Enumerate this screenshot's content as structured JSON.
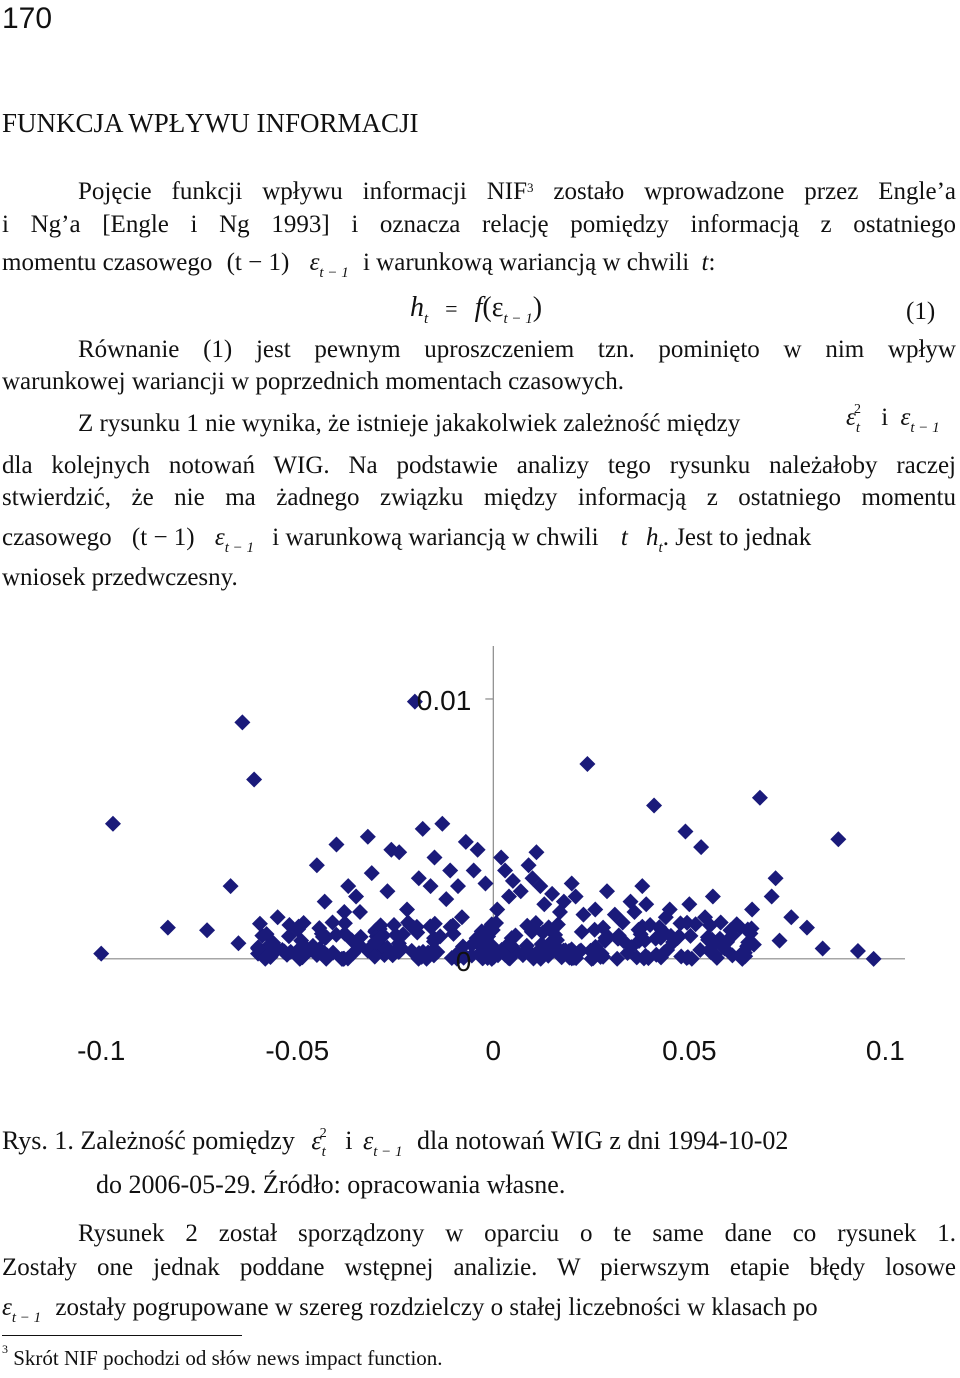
{
  "page_number": "170",
  "section_title": "FUNKCJA WPŁYWU INFORMACJI",
  "para1": {
    "line1a": "Pojęcie funkcji wpływu informacji NIF",
    "line1_footnote_mark": "3",
    "line1b": " zostało wprowadzone przez Engle’a",
    "line2": "i Ng’a [Engle i Ng 1993] i oznacza relację pomiędzy informacją z ostatniego",
    "line3_text": "momentu czasowego",
    "line3_math1": "(t − 1)",
    "line3_text2": "i warunkową wariancją w chwili",
    "line3_math2": "t",
    "line3_end": ":"
  },
  "equation": {
    "lhs": "h",
    "lhs_sub": "t",
    "eq": "=",
    "func": "f",
    "arg_open": "(ε",
    "arg_sub": "t − 1",
    "arg_close": ")",
    "number": "(1)"
  },
  "para2": {
    "line1": "Równanie (1) jest pewnym uproszczeniem tzn. pominięto w nim wpływ",
    "line2": "warunkowej wariancji w poprzednich momentach czasowych."
  },
  "para3": {
    "line1": "Z rysunku 1 nie wynika, że istnieje jakakolwiek zależność między",
    "line1_math_sup": "2",
    "line1_conj": "i",
    "line2": "dla kolejnych notowań WIG. Na podstawie analizy tego rysunku należałoby raczej",
    "line3": "stwierdzić, że nie ma żadnego związku między informacją z ostatniego momentu",
    "line4_text": "czasowego",
    "line4_math1": "(t − 1)",
    "line4_text2": "i warunkową wariancją w chwili",
    "line4_text3": ". Jest to jednak",
    "line5": "wniosek przedwczesny."
  },
  "eps": "ε",
  "sub_t": "t",
  "sub_t1": "t − 1",
  "chart_data": {
    "type": "scatter",
    "title": "",
    "xlabel": "",
    "ylabel": "",
    "xlim": [
      -0.11,
      0.105
    ],
    "ylim": [
      -0.0022,
      0.0115
    ],
    "x_ticks": [
      "-0.1",
      "-0.05",
      "0",
      "0.05",
      "0.1"
    ],
    "x_tick_values": [
      -0.1,
      -0.05,
      0,
      0.05,
      0.1
    ],
    "y_ticks": [
      "0.01",
      "0"
    ],
    "y_tick_values": [
      0.01,
      0
    ],
    "marker": "diamond",
    "marker_color": "#1a1a7a",
    "points": [
      [
        -0.1,
        0.0002
      ],
      [
        -0.097,
        0.0052
      ],
      [
        -0.083,
        0.0012
      ],
      [
        -0.073,
        0.0011
      ],
      [
        -0.067,
        0.0028
      ],
      [
        -0.061,
        0.0069
      ],
      [
        -0.064,
        0.0091
      ],
      [
        -0.058,
        0.0004
      ],
      [
        -0.055,
        0.0016
      ],
      [
        -0.049,
        0.0007
      ],
      [
        -0.045,
        0.0036
      ],
      [
        -0.04,
        0.0044
      ],
      [
        -0.037,
        0.0028
      ],
      [
        -0.034,
        0.0018
      ],
      [
        -0.03,
        0.0011
      ],
      [
        -0.028,
        0.0009
      ],
      [
        -0.024,
        0.0041
      ],
      [
        -0.02,
        0.0099
      ],
      [
        -0.018,
        0.005
      ],
      [
        -0.013,
        0.0052
      ],
      [
        -0.011,
        0.0034
      ],
      [
        -0.007,
        0.0045
      ],
      [
        -0.004,
        0.0042
      ],
      [
        0.002,
        0.0039
      ],
      [
        0.005,
        0.003
      ],
      [
        0.009,
        0.0036
      ],
      [
        0.013,
        0.0021
      ],
      [
        0.017,
        0.0018
      ],
      [
        0.024,
        0.0075
      ],
      [
        0.028,
        0.0012
      ],
      [
        0.031,
        0.0017
      ],
      [
        0.035,
        0.0022
      ],
      [
        0.038,
        0.0028
      ],
      [
        0.041,
        0.0059
      ],
      [
        0.045,
        0.0019
      ],
      [
        0.049,
        0.0049
      ],
      [
        0.053,
        0.0043
      ],
      [
        0.058,
        0.0014
      ],
      [
        0.061,
        0.0009
      ],
      [
        0.065,
        0.0005
      ],
      [
        0.068,
        0.0062
      ],
      [
        0.072,
        0.0031
      ],
      [
        0.076,
        0.0016
      ],
      [
        0.08,
        0.0012
      ],
      [
        0.084,
        0.0004
      ],
      [
        0.088,
        0.0046
      ],
      [
        0.093,
        0.0003
      ],
      [
        0.097,
        0.0
      ],
      [
        -0.052,
        0.0013
      ],
      [
        -0.043,
        0.0022
      ],
      [
        -0.032,
        0.0047
      ],
      [
        -0.026,
        0.0042
      ],
      [
        -0.016,
        0.0028
      ],
      [
        -0.008,
        0.0016
      ],
      [
        0.004,
        0.0024
      ],
      [
        0.011,
        0.0041
      ],
      [
        0.02,
        0.0029
      ],
      [
        0.026,
        0.0019
      ],
      [
        0.033,
        0.0014
      ],
      [
        0.039,
        0.0021
      ],
      [
        0.043,
        0.0011
      ],
      [
        0.047,
        0.0008
      ],
      [
        0.056,
        0.0024
      ],
      [
        0.063,
        0.0012
      ],
      [
        0.071,
        0.0024
      ],
      [
        -0.065,
        0.0006
      ],
      [
        -0.06,
        0.0002
      ],
      [
        -0.05,
        0.0003
      ],
      [
        -0.046,
        0.0005
      ],
      [
        -0.041,
        0.0014
      ],
      [
        -0.038,
        0.0018
      ],
      [
        -0.035,
        0.0024
      ],
      [
        -0.031,
        0.0033
      ],
      [
        -0.027,
        0.0026
      ],
      [
        -0.022,
        0.0019
      ],
      [
        -0.019,
        0.0031
      ],
      [
        -0.015,
        0.0039
      ],
      [
        -0.012,
        0.0023
      ],
      [
        -0.009,
        0.0028
      ],
      [
        -0.005,
        0.0034
      ],
      [
        -0.002,
        0.0029
      ],
      [
        0.001,
        0.0019
      ],
      [
        0.003,
        0.0034
      ],
      [
        0.007,
        0.0026
      ],
      [
        0.01,
        0.0031
      ],
      [
        0.012,
        0.0028
      ],
      [
        0.015,
        0.0025
      ],
      [
        0.018,
        0.0022
      ],
      [
        0.021,
        0.0024
      ],
      [
        0.023,
        0.0017
      ],
      [
        0.029,
        0.0026
      ],
      [
        0.032,
        0.0009
      ],
      [
        0.036,
        0.0018
      ],
      [
        0.04,
        0.0013
      ],
      [
        0.044,
        0.0016
      ],
      [
        0.05,
        0.0021
      ],
      [
        0.054,
        0.0016
      ],
      [
        0.059,
        0.0004
      ],
      [
        0.066,
        0.0019
      ],
      [
        0.073,
        0.0007
      ]
    ],
    "dense_band": {
      "x_range": [
        -0.06,
        0.07
      ],
      "y_range": [
        0.0,
        0.0014
      ]
    }
  },
  "caption": {
    "label": "Rys. 1.",
    "text1": "Zależność pomiędzy",
    "sup": "2",
    "conj": "i",
    "text2": "dla notowań WIG z dni 1994-10-02",
    "line2": "do 2006-05-29. Źródło: opracowania własne."
  },
  "para4": {
    "line1": "Rysunek 2 został sporządzony w oparciu o te same dane co rysunek 1.",
    "line2": "Zostały one jednak poddane wstępnej analizie. W pierwszym etapie błędy losowe",
    "line3": "zostały pogrupowane w szereg rozdzielczy o stałej liczebności w klasach po"
  },
  "footnote": {
    "mark": "3",
    "text": "Skrót NIF pochodzi od słów news impact function."
  }
}
